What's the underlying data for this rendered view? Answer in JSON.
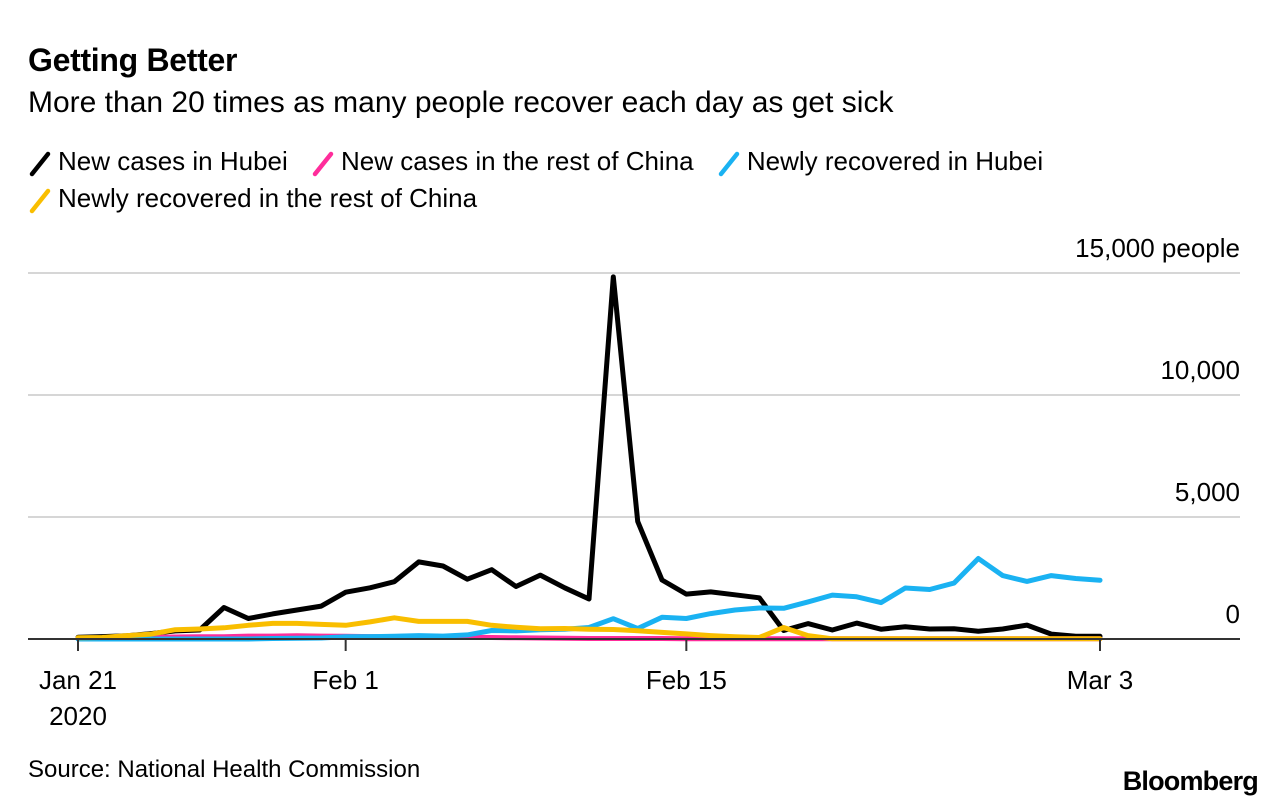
{
  "chart_data": {
    "type": "line",
    "title": "Getting Better",
    "subtitle": "More than 20 times as many people recover each day as get sick",
    "y_unit": "people",
    "ylim": [
      0,
      15000
    ],
    "y_ticks": [
      {
        "value": 15000,
        "label": "15,000 people"
      },
      {
        "value": 10000,
        "label": "10,000"
      },
      {
        "value": 5000,
        "label": "5,000"
      },
      {
        "value": 0,
        "label": "0"
      }
    ],
    "x_ticks": [
      {
        "index": 0,
        "label": "Jan 21",
        "sublabel": "2020"
      },
      {
        "index": 11,
        "label": "Feb 1",
        "sublabel": ""
      },
      {
        "index": 25,
        "label": "Feb 15",
        "sublabel": ""
      },
      {
        "index": 42,
        "label": "Mar 3",
        "sublabel": ""
      }
    ],
    "x": [
      "Jan 21",
      "Jan 22",
      "Jan 23",
      "Jan 24",
      "Jan 25",
      "Jan 26",
      "Jan 27",
      "Jan 28",
      "Jan 29",
      "Jan 30",
      "Jan 31",
      "Feb 1",
      "Feb 2",
      "Feb 3",
      "Feb 4",
      "Feb 5",
      "Feb 6",
      "Feb 7",
      "Feb 8",
      "Feb 9",
      "Feb 10",
      "Feb 11",
      "Feb 12",
      "Feb 13",
      "Feb 14",
      "Feb 15",
      "Feb 16",
      "Feb 17",
      "Feb 18",
      "Feb 19",
      "Feb 20",
      "Feb 21",
      "Feb 22",
      "Feb 23",
      "Feb 24",
      "Feb 25",
      "Feb 26",
      "Feb 27",
      "Feb 28",
      "Feb 29",
      "Mar 1",
      "Mar 2",
      "Mar 3"
    ],
    "series": [
      {
        "name": "New cases in Hubei",
        "color": "#000000",
        "values": [
          70,
          100,
          130,
          220,
          330,
          370,
          1290,
          840,
          1030,
          1190,
          1350,
          1920,
          2100,
          2350,
          3160,
          2990,
          2450,
          2840,
          2150,
          2620,
          2100,
          1640,
          14840,
          4820,
          2420,
          1840,
          1930,
          1810,
          1690,
          350,
          630,
          370,
          650,
          400,
          500,
          410,
          420,
          320,
          410,
          570,
          200,
          110,
          110
        ]
      },
      {
        "name": "New cases in the rest of China",
        "color": "#ff2d9b",
        "values": [
          20,
          30,
          40,
          60,
          80,
          90,
          90,
          120,
          120,
          130,
          120,
          110,
          100,
          100,
          90,
          80,
          70,
          60,
          50,
          40,
          30,
          20,
          20,
          20,
          20,
          10,
          10,
          10,
          10,
          10,
          10,
          10,
          10,
          10,
          10,
          10,
          10,
          10,
          10,
          10,
          10,
          10,
          10
        ]
      },
      {
        "name": "Newly recovered in Hubei",
        "color": "#1ab2f2",
        "values": [
          0,
          0,
          0,
          0,
          0,
          0,
          0,
          0,
          20,
          30,
          40,
          90,
          100,
          110,
          140,
          120,
          170,
          350,
          330,
          380,
          400,
          470,
          830,
          430,
          890,
          840,
          1040,
          1190,
          1270,
          1260,
          1520,
          1800,
          1730,
          1490,
          2090,
          2030,
          2290,
          3300,
          2600,
          2360,
          2600,
          2480,
          2410
        ]
      },
      {
        "name": "Newly recovered in the rest of China",
        "color": "#f9be00",
        "values": [
          50,
          60,
          140,
          200,
          380,
          410,
          460,
          560,
          640,
          640,
          600,
          560,
          700,
          870,
          720,
          720,
          720,
          560,
          480,
          420,
          430,
          400,
          390,
          340,
          270,
          210,
          140,
          90,
          60,
          470,
          140,
          10,
          10,
          10,
          10,
          10,
          10,
          10,
          10,
          10,
          10,
          10,
          10
        ]
      }
    ]
  },
  "legend": {
    "items": [
      {
        "label": "New cases in Hubei",
        "color": "#000000"
      },
      {
        "label": "New cases in the rest of China",
        "color": "#ff2d9b"
      },
      {
        "label": "Newly recovered in Hubei",
        "color": "#1ab2f2"
      },
      {
        "label": "Newly recovered in the rest of China",
        "color": "#f9be00"
      }
    ]
  },
  "footer": {
    "source": "Source: National Health Commission",
    "brand": "Bloomberg"
  }
}
